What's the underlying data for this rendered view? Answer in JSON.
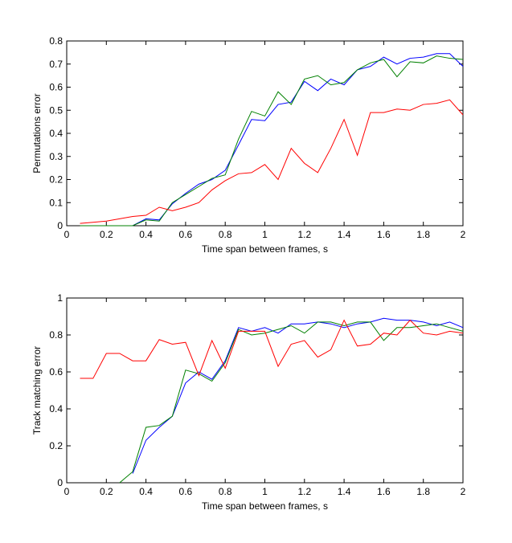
{
  "chart_data": [
    {
      "type": "line",
      "xlabel": "Time span between frames, s",
      "ylabel": "Permutations error",
      "xlim": [
        0,
        2
      ],
      "ylim": [
        0,
        0.8
      ],
      "xticks": [
        0,
        0.2,
        0.4,
        0.6,
        0.8,
        1,
        1.2,
        1.4,
        1.6,
        1.8,
        2
      ],
      "xtick_labels": [
        "0",
        "0.2",
        "0.4",
        "0.6",
        "0.8",
        "1",
        "1.2",
        "1.4",
        "1.6",
        "1.8",
        "2"
      ],
      "yticks": [
        0,
        0.1,
        0.2,
        0.3,
        0.4,
        0.5,
        0.6,
        0.7,
        0.8
      ],
      "ytick_labels": [
        "0",
        "0.1",
        "0.2",
        "0.3",
        "0.4",
        "0.5",
        "0.6",
        "0.7",
        "0.8"
      ],
      "grid": false,
      "x": [
        0.067,
        0.133,
        0.2,
        0.267,
        0.333,
        0.4,
        0.467,
        0.533,
        0.6,
        0.667,
        0.733,
        0.8,
        0.867,
        0.933,
        1.0,
        1.067,
        1.133,
        1.2,
        1.267,
        1.333,
        1.4,
        1.467,
        1.533,
        1.6,
        1.667,
        1.733,
        1.8,
        1.867,
        1.933,
        2.0
      ],
      "series": [
        {
          "color": "#0000ff",
          "values": [
            0,
            0,
            0,
            0,
            0,
            0.03,
            0.025,
            0.095,
            0.14,
            0.18,
            0.2,
            0.24,
            0.35,
            0.46,
            0.455,
            0.525,
            0.535,
            0.625,
            0.585,
            0.635,
            0.61,
            0.675,
            0.69,
            0.73,
            0.7,
            0.725,
            0.73,
            0.745,
            0.745,
            0.69
          ]
        },
        {
          "color": "#008000",
          "values": [
            0,
            0,
            0,
            0,
            0,
            0.025,
            0.02,
            0.1,
            0.135,
            0.17,
            0.205,
            0.22,
            0.375,
            0.495,
            0.475,
            0.58,
            0.525,
            0.635,
            0.65,
            0.61,
            0.62,
            0.675,
            0.705,
            0.72,
            0.645,
            0.71,
            0.705,
            0.735,
            0.725,
            0.72
          ]
        },
        {
          "color": "#ff0000",
          "values": [
            0.01,
            0.015,
            0.02,
            0.03,
            0.04,
            0.045,
            0.08,
            0.065,
            0.08,
            0.1,
            0.155,
            0.195,
            0.225,
            0.23,
            0.265,
            0.2,
            0.335,
            0.27,
            0.23,
            0.335,
            0.46,
            0.305,
            0.49,
            0.49,
            0.505,
            0.5,
            0.525,
            0.53,
            0.545,
            0.48
          ]
        }
      ]
    },
    {
      "type": "line",
      "xlabel": "Time span between frames, s",
      "ylabel": "Track matching error",
      "xlim": [
        0,
        2
      ],
      "ylim": [
        0,
        1
      ],
      "xticks": [
        0,
        0.2,
        0.4,
        0.6,
        0.8,
        1,
        1.2,
        1.4,
        1.6,
        1.8,
        2
      ],
      "xtick_labels": [
        "0",
        "0.2",
        "0.4",
        "0.6",
        "0.8",
        "1",
        "1.2",
        "1.4",
        "1.6",
        "1.8",
        "2"
      ],
      "yticks": [
        0,
        0.2,
        0.4,
        0.6,
        0.8,
        1
      ],
      "ytick_labels": [
        "0",
        "0.2",
        "0.4",
        "0.6",
        "0.8",
        "1"
      ],
      "grid": false,
      "x": [
        0.067,
        0.133,
        0.2,
        0.267,
        0.333,
        0.4,
        0.467,
        0.533,
        0.6,
        0.667,
        0.733,
        0.8,
        0.867,
        0.933,
        1.0,
        1.067,
        1.133,
        1.2,
        1.267,
        1.333,
        1.4,
        1.467,
        1.533,
        1.6,
        1.667,
        1.733,
        1.8,
        1.867,
        1.933,
        2.0
      ],
      "series": [
        {
          "color": "#0000ff",
          "values": [
            null,
            null,
            null,
            null,
            0.05,
            0.23,
            0.3,
            0.36,
            0.54,
            0.6,
            0.56,
            0.66,
            0.84,
            0.82,
            0.84,
            0.81,
            0.86,
            0.86,
            0.87,
            0.86,
            0.84,
            0.86,
            0.87,
            0.89,
            0.88,
            0.88,
            0.87,
            0.85,
            0.87,
            0.84
          ]
        },
        {
          "color": "#008000",
          "values": [
            null,
            null,
            null,
            0,
            0.06,
            0.3,
            0.31,
            0.36,
            0.61,
            0.59,
            0.55,
            0.65,
            0.83,
            0.8,
            0.81,
            0.83,
            0.85,
            0.81,
            0.87,
            0.87,
            0.85,
            0.87,
            0.87,
            0.77,
            0.84,
            0.84,
            0.85,
            0.86,
            0.84,
            0.82
          ]
        },
        {
          "color": "#ff0000",
          "values": [
            0.565,
            0.565,
            0.7,
            0.7,
            0.66,
            0.66,
            0.775,
            0.75,
            0.76,
            0.58,
            0.77,
            0.62,
            0.82,
            0.82,
            0.82,
            0.63,
            0.75,
            0.77,
            0.68,
            0.72,
            0.88,
            0.74,
            0.75,
            0.81,
            0.8,
            0.88,
            0.81,
            0.8,
            0.82,
            0.81
          ]
        }
      ]
    }
  ]
}
